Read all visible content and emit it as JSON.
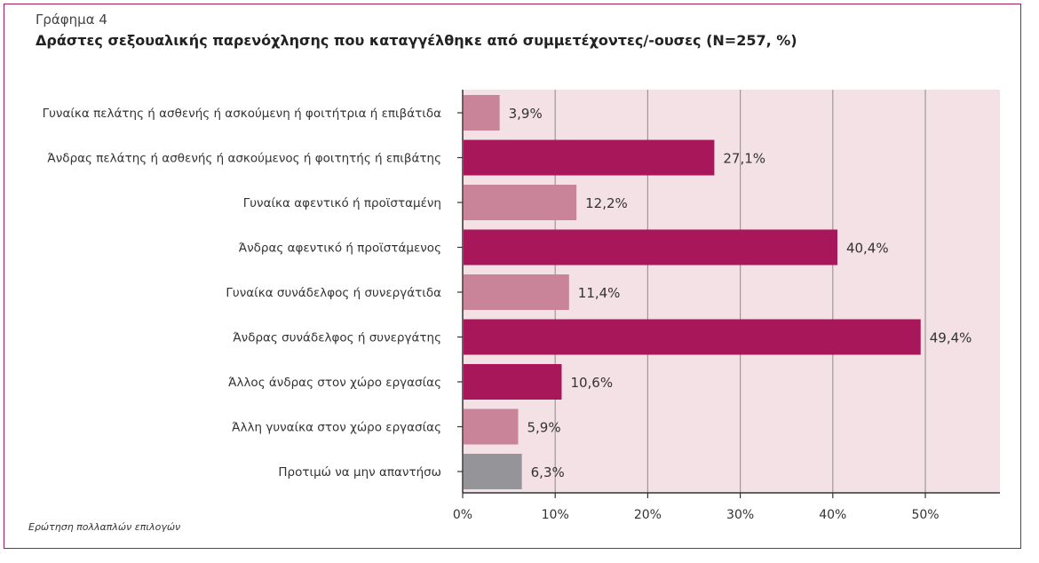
{
  "header": {
    "figure_number": "Γράφημα 4",
    "title": "Δράστες σεξουαλικής παρενόχλησης που καταγγέλθηκε από συμμετέχοντες/-ουσες (N=257, %)"
  },
  "footnote": "Ερώτηση πολλαπλών επιλογών",
  "colors": {
    "plot_background": "#f3e1e6",
    "dark_bar": "#a8175a",
    "light_bar": "#c9849a",
    "gray_bar": "#959599",
    "gridline": "#999999",
    "axis": "#333333"
  },
  "chart_data": {
    "type": "bar",
    "orientation": "horizontal",
    "categories": [
      "Γυναίκα πελάτης ή ασθενής ή ασκούμενη ή φοιτήτρια ή επιβάτιδα",
      "Άνδρας πελάτης ή ασθενής ή ασκούμενος ή φοιτητής ή επιβάτης",
      "Γυναίκα αφεντικό ή προϊσταμένη",
      "Άνδρας αφεντικό ή προϊστάμενος",
      "Γυναίκα συνάδελφος ή συνεργάτιδα",
      "Άνδρας συνάδελφος ή συνεργάτης",
      "Άλλος άνδρας στον χώρο εργασίας",
      "Άλλη γυναίκα στον χώρο εργασίας",
      "Προτιμώ να μην απαντήσω"
    ],
    "values": [
      3.9,
      27.1,
      12.2,
      40.4,
      11.4,
      49.4,
      10.6,
      5.9,
      6.3
    ],
    "value_labels": [
      "3,9%",
      "27,1%",
      "12,2%",
      "40,4%",
      "11,4%",
      "49,4%",
      "10,6%",
      "5,9%",
      "6,3%"
    ],
    "bar_color_keys": [
      "light_bar",
      "dark_bar",
      "light_bar",
      "dark_bar",
      "light_bar",
      "dark_bar",
      "dark_bar",
      "light_bar",
      "gray_bar"
    ],
    "xlim": [
      0,
      58
    ],
    "x_ticks": [
      0,
      10,
      20,
      30,
      40,
      50
    ],
    "x_tick_labels": [
      "0%",
      "10%",
      "20%",
      "30%",
      "40%",
      "50%"
    ],
    "xlabel": "",
    "ylabel": "",
    "grid": true,
    "legend": "none"
  }
}
